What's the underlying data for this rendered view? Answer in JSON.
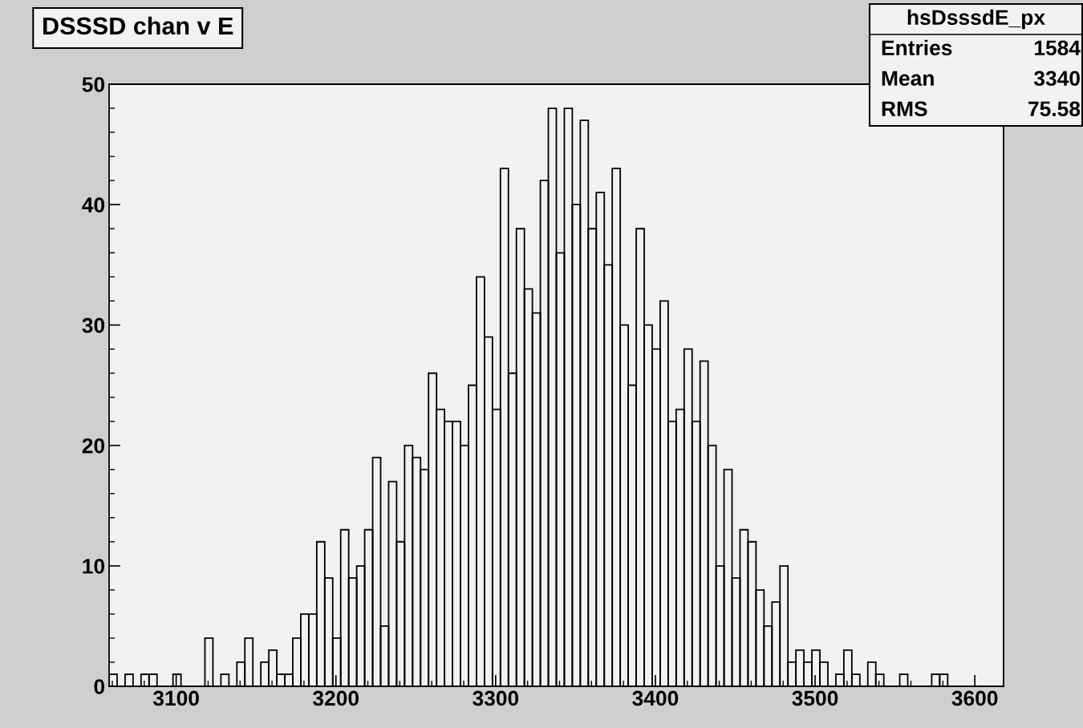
{
  "chart_data": {
    "type": "histogram",
    "title": "DSSSD chan v E",
    "annotations": [
      "hsDsssdE_px",
      "Entries",
      "1584",
      "Mean",
      "3340",
      "RMS",
      "75.58"
    ],
    "bins": [
      3058,
      3063,
      3068,
      3073,
      3078,
      3083,
      3088,
      3093,
      3098,
      3103,
      3108,
      3113,
      3118,
      3123,
      3128,
      3133,
      3138,
      3143,
      3148,
      3153,
      3158,
      3163,
      3168,
      3173,
      3178,
      3183,
      3188,
      3193,
      3198,
      3203,
      3208,
      3213,
      3218,
      3223,
      3228,
      3233,
      3238,
      3243,
      3248,
      3253,
      3258,
      3263,
      3268,
      3273,
      3278,
      3283,
      3288,
      3293,
      3298,
      3303,
      3308,
      3313,
      3318,
      3323,
      3328,
      3333,
      3338,
      3343,
      3348,
      3353,
      3358,
      3363,
      3368,
      3373,
      3378,
      3383,
      3388,
      3393,
      3398,
      3403,
      3408,
      3413,
      3418,
      3423,
      3428,
      3433,
      3438,
      3443,
      3448,
      3453,
      3458,
      3463,
      3468,
      3473,
      3478,
      3483,
      3488,
      3493,
      3498,
      3503,
      3508,
      3513,
      3518,
      3523,
      3528,
      3533,
      3538,
      3543,
      3548,
      3553,
      3558,
      3563,
      3568,
      3573,
      3578,
      3583,
      3588,
      3593,
      3598,
      3603,
      3608,
      3613,
      3618
    ],
    "values": [
      1,
      0,
      1,
      0,
      1,
      1,
      0,
      0,
      1,
      0,
      0,
      0,
      4,
      0,
      1,
      0,
      2,
      4,
      0,
      2,
      3,
      1,
      1,
      4,
      6,
      6,
      12,
      9,
      4,
      13,
      9,
      10,
      13,
      19,
      5,
      17,
      12,
      20,
      19,
      18,
      26,
      23,
      22,
      22,
      20,
      25,
      34,
      29,
      23,
      43,
      26,
      38,
      33,
      31,
      42,
      48,
      36,
      48,
      40,
      47,
      38,
      41,
      35,
      43,
      30,
      25,
      38,
      30,
      28,
      32,
      22,
      23,
      28,
      22,
      27,
      20,
      10,
      18,
      9,
      13,
      12,
      8,
      5,
      7,
      10,
      2,
      3,
      2,
      3,
      2,
      0,
      1,
      3,
      1,
      0,
      2,
      1,
      0,
      0,
      1,
      0,
      0,
      0,
      1,
      1,
      0,
      0,
      0,
      0,
      0,
      0,
      0
    ],
    "color": "#000000",
    "xlim": [
      3058,
      3618
    ],
    "xticks": [
      3100,
      3200,
      3300,
      3400,
      3500,
      3600
    ],
    "ylim": [
      0,
      50
    ],
    "yticks": [
      0,
      10,
      20,
      30,
      40,
      50
    ],
    "grid": false
  }
}
